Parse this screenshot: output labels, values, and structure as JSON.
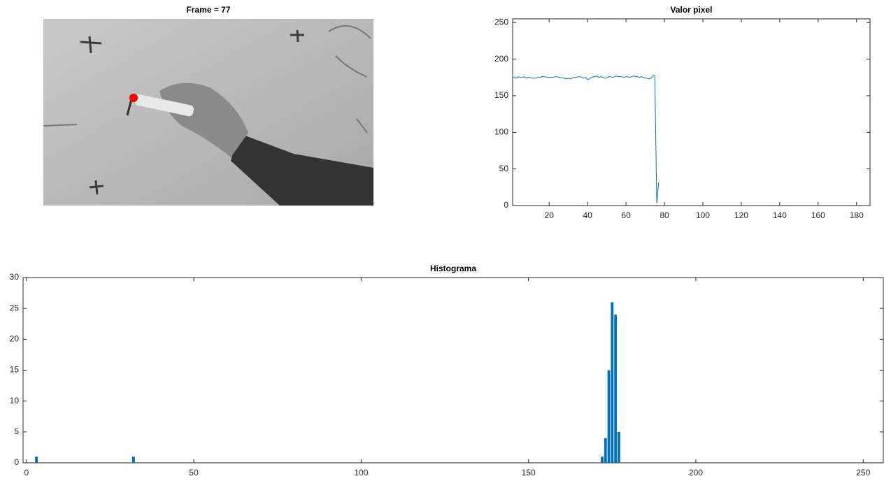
{
  "chart_data": [
    {
      "type": "image",
      "title": "Frame = 77"
    },
    {
      "type": "line",
      "title": "Valor pixel",
      "color": "#0072bd",
      "x": [
        1,
        2,
        3,
        4,
        5,
        6,
        7,
        8,
        9,
        10,
        11,
        12,
        13,
        14,
        15,
        16,
        17,
        18,
        19,
        20,
        21,
        22,
        23,
        24,
        25,
        26,
        27,
        28,
        29,
        30,
        31,
        32,
        33,
        34,
        35,
        36,
        37,
        38,
        39,
        40,
        41,
        42,
        43,
        44,
        45,
        46,
        47,
        48,
        49,
        50,
        51,
        52,
        53,
        54,
        55,
        56,
        57,
        58,
        59,
        60,
        61,
        62,
        63,
        64,
        65,
        66,
        67,
        68,
        69,
        70,
        71,
        72,
        73,
        74,
        75,
        76,
        77
      ],
      "values": [
        175,
        175,
        174,
        176,
        175,
        175,
        176,
        174,
        175,
        175,
        174,
        174,
        174,
        175,
        175,
        176,
        176,
        176,
        175,
        175,
        175,
        175,
        176,
        176,
        175,
        175,
        174,
        174,
        173,
        174,
        173,
        174,
        175,
        175,
        176,
        176,
        175,
        174,
        175,
        172,
        173,
        175,
        176,
        176,
        177,
        175,
        176,
        175,
        174,
        174,
        176,
        176,
        175,
        176,
        177,
        176,
        176,
        176,
        175,
        176,
        176,
        175,
        176,
        177,
        176,
        176,
        175,
        176,
        175,
        174,
        174,
        173,
        174,
        177,
        177,
        3,
        32
      ],
      "xlim": [
        1,
        187
      ],
      "xticks": [
        20,
        40,
        60,
        80,
        100,
        120,
        140,
        160,
        180
      ],
      "ylim": [
        0,
        255
      ],
      "yticks": [
        0,
        50,
        100,
        150,
        200,
        250
      ]
    },
    {
      "type": "bar",
      "title": "Histograma",
      "color": "#0072bd",
      "x": [
        3,
        32,
        172,
        173,
        174,
        175,
        176,
        177
      ],
      "values": [
        1,
        1,
        1,
        4,
        15,
        26,
        24,
        5
      ],
      "xlim": [
        -1,
        256
      ],
      "xticks": [
        0,
        50,
        100,
        150,
        200,
        250
      ],
      "ylim": [
        0,
        30
      ],
      "yticks": [
        0,
        5,
        10,
        15,
        20,
        25,
        30
      ]
    }
  ]
}
